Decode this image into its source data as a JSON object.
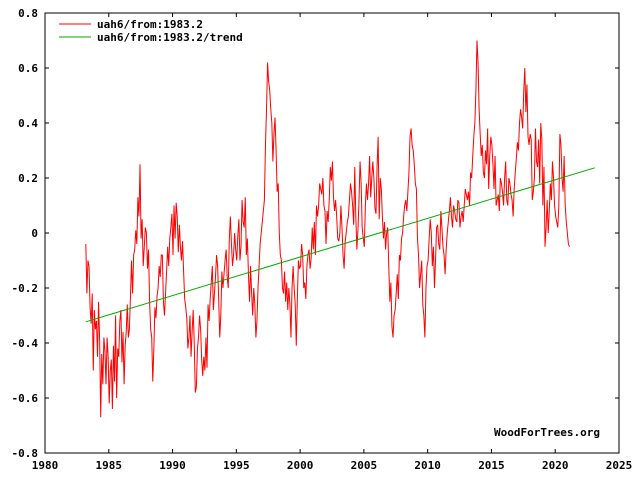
{
  "chart_data": {
    "type": "line",
    "title": "",
    "xlabel": "",
    "ylabel": "",
    "xlim": [
      1980,
      2025
    ],
    "ylim": [
      -0.8,
      0.8
    ],
    "grid": false,
    "x_ticks": [
      1980,
      1985,
      1990,
      1995,
      2000,
      2005,
      2010,
      2015,
      2020,
      2025
    ],
    "y_ticks": [
      -0.8,
      -0.6,
      -0.4,
      -0.2,
      0,
      0.2,
      0.4,
      0.6,
      0.8
    ],
    "x_tick_labels": [
      "1980",
      "1985",
      "1990",
      "1995",
      "2000",
      "2005",
      "2010",
      "2015",
      "2020",
      "2025"
    ],
    "y_tick_labels": [
      "-0.8",
      "-0.6",
      "-0.4",
      "-0.2",
      "0",
      "0.2",
      "0.4",
      "0.6",
      "0.8"
    ],
    "legend_position": "top-left",
    "annotation": "WoodForTrees.org",
    "series": [
      {
        "name": "uah6/from:1983.2",
        "color": "#ff0000",
        "x_start": 1983.2,
        "step": 0.0833333,
        "values": [
          -0.04,
          -0.22,
          -0.1,
          -0.12,
          -0.27,
          -0.33,
          -0.22,
          -0.5,
          -0.28,
          -0.35,
          -0.32,
          -0.45,
          -0.25,
          -0.39,
          -0.67,
          -0.44,
          -0.55,
          -0.38,
          -0.43,
          -0.55,
          -0.38,
          -0.45,
          -0.62,
          -0.5,
          -0.46,
          -0.64,
          -0.41,
          -0.54,
          -0.3,
          -0.6,
          -0.42,
          -0.45,
          -0.32,
          -0.28,
          -0.47,
          -0.36,
          -0.55,
          -0.41,
          -0.36,
          -0.26,
          -0.38,
          -0.35,
          -0.23,
          -0.1,
          -0.22,
          -0.08,
          -0.06,
          0.01,
          -0.04,
          0.13,
          0.06,
          0.25,
          -0.02,
          0.05,
          -0.12,
          -0.05,
          0.02,
          0.0,
          -0.13,
          -0.06,
          -0.25,
          -0.35,
          -0.38,
          -0.54,
          -0.42,
          -0.27,
          -0.31,
          -0.23,
          -0.2,
          -0.12,
          -0.16,
          -0.08,
          -0.08,
          -0.25,
          -0.3,
          -0.22,
          -0.14,
          -0.05,
          -0.12,
          -0.02,
          0.02,
          0.07,
          -0.08,
          0.1,
          -0.02,
          0.11,
          0.06,
          -0.07,
          0.03,
          -0.05,
          -0.1,
          -0.03,
          -0.14,
          -0.24,
          -0.27,
          -0.31,
          -0.42,
          -0.38,
          -0.3,
          -0.45,
          -0.36,
          -0.28,
          -0.4,
          -0.58,
          -0.56,
          -0.42,
          -0.38,
          -0.3,
          -0.35,
          -0.46,
          -0.52,
          -0.45,
          -0.5,
          -0.38,
          -0.49,
          -0.26,
          -0.32,
          -0.24,
          -0.18,
          -0.12,
          -0.28,
          -0.22,
          -0.16,
          -0.08,
          -0.12,
          -0.24,
          -0.38,
          -0.3,
          -0.14,
          -0.2,
          -0.15,
          -0.1,
          -0.06,
          -0.16,
          -0.2,
          -0.02,
          0.06,
          -0.04,
          -0.12,
          -0.08,
          0.0,
          -0.06,
          -0.1,
          -0.01,
          0.05,
          -0.1,
          -0.05,
          0.12,
          0.04,
          0.02,
          0.13,
          -0.08,
          -0.02,
          -0.15,
          -0.25,
          -0.12,
          -0.22,
          -0.3,
          -0.2,
          -0.26,
          -0.38,
          -0.32,
          -0.2,
          -0.12,
          -0.04,
          0.0,
          0.04,
          0.08,
          0.12,
          0.32,
          0.45,
          0.62,
          0.55,
          0.52,
          0.45,
          0.4,
          0.26,
          0.36,
          0.42,
          0.3,
          0.15,
          0.18,
          0.0,
          -0.08,
          -0.1,
          -0.2,
          -0.22,
          -0.14,
          -0.25,
          -0.18,
          -0.28,
          -0.2,
          -0.26,
          -0.38,
          -0.2,
          -0.12,
          -0.2,
          -0.26,
          -0.41,
          -0.24,
          -0.1,
          -0.13,
          -0.12,
          -0.04,
          -0.08,
          -0.2,
          -0.18,
          -0.24,
          -0.12,
          -0.08,
          -0.06,
          -0.13,
          -0.09,
          0.02,
          -0.06,
          0.04,
          -0.08,
          0.1,
          0.06,
          0.1,
          0.18,
          0.16,
          0.14,
          0.2,
          0.1,
          0.08,
          -0.04,
          0.08,
          0.04,
          0.12,
          0.24,
          0.19,
          0.26,
          0.13,
          0.08,
          0.12,
          0.06,
          -0.02,
          -0.03,
          0.0,
          0.1,
          0.02,
          -0.08,
          -0.13,
          -0.03,
          0.0,
          0.04,
          0.06,
          0.12,
          0.18,
          0.15,
          0.1,
          0.03,
          0.24,
          0.06,
          -0.06,
          0.01,
          0.12,
          0.26,
          0.18,
          0.02,
          -0.02,
          -0.05,
          0.1,
          0.18,
          0.12,
          0.18,
          0.28,
          0.13,
          0.2,
          0.26,
          0.2,
          0.09,
          0.07,
          0.24,
          0.35,
          0.05,
          0.2,
          0.16,
          0.06,
          -0.02,
          0.04,
          -0.06,
          0.0,
          0.02,
          -0.12,
          -0.25,
          -0.18,
          -0.34,
          -0.38,
          -0.3,
          -0.28,
          -0.22,
          -0.15,
          -0.24,
          -0.08,
          -0.1,
          -0.02,
          0.0,
          0.06,
          0.1,
          0.12,
          0.08,
          0.15,
          0.22,
          0.35,
          0.38,
          0.32,
          0.3,
          0.25,
          0.18,
          0.16,
          -0.02,
          -0.08,
          -0.2,
          -0.15,
          -0.1,
          -0.26,
          -0.3,
          -0.38,
          -0.2,
          -0.12,
          -0.1,
          -0.02,
          0.05,
          0.0,
          -0.12,
          -0.05,
          -0.2,
          -0.1,
          0.02,
          0.03,
          -0.04,
          -0.06,
          0.08,
          0.02,
          -0.05,
          -0.08,
          -0.15,
          -0.06,
          0.0,
          0.04,
          0.08,
          0.13,
          0.06,
          0.02,
          0.1,
          0.08,
          0.05,
          0.04,
          0.12,
          0.11,
          0.02,
          0.06,
          0.08,
          0.04,
          0.1,
          0.16,
          0.14,
          0.12,
          0.15,
          0.1,
          0.22,
          0.2,
          0.28,
          0.35,
          0.4,
          0.52,
          0.7,
          0.62,
          0.45,
          0.36,
          0.28,
          0.32,
          0.22,
          0.2,
          0.3,
          0.25,
          0.38,
          0.16,
          0.28,
          0.35,
          0.32,
          0.25,
          0.16,
          0.28,
          0.1,
          0.12,
          0.14,
          0.08,
          0.2,
          0.18,
          0.15,
          0.1,
          0.2,
          0.26,
          0.12,
          0.1,
          0.2,
          0.18,
          0.14,
          0.12,
          0.06,
          0.16,
          0.22,
          0.27,
          0.33,
          0.3,
          0.4,
          0.45,
          0.42,
          0.38,
          0.52,
          0.6,
          0.44,
          0.54,
          0.35,
          0.32,
          0.36,
          0.34,
          0.12,
          0.15,
          0.2,
          0.38,
          0.26,
          0.24,
          0.34,
          0.18,
          0.4,
          0.34,
          0.1,
          0.24,
          -0.05,
          0.02,
          0.12,
          0.0,
          0.08,
          0.18,
          0.12,
          0.26,
          0.2,
          0.1,
          0.06,
          0.04,
          0.02,
          0.1,
          0.36,
          0.32,
          0.2,
          0.15,
          0.28,
          0.1,
          0.04,
          0.0,
          -0.04,
          -0.05
        ]
      },
      {
        "name": "uah6/from:1983.2/trend",
        "color": "#00aa00",
        "x": [
          1983.2,
          2023.1
        ],
        "values": [
          -0.323,
          0.237
        ]
      }
    ]
  }
}
